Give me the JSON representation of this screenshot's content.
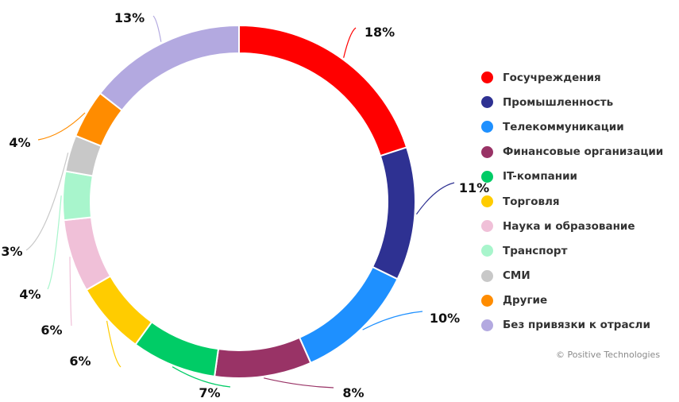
{
  "chart_data": {
    "type": "pie",
    "title": "",
    "categories": [
      "Госучреждения",
      "Промышленность",
      "Телекоммуникации",
      "Финансовые организации",
      "IT-компании",
      "Торговля",
      "Наука и образование",
      "Транспорт",
      "СМИ",
      "Другие",
      "Без привязки к отрасли"
    ],
    "values": [
      18,
      11,
      10,
      8,
      7,
      6,
      6,
      4,
      3,
      4,
      13
    ],
    "labels": [
      "18%",
      "11%",
      "10%",
      "8%",
      "7%",
      "6%",
      "6%",
      "4%",
      "3%",
      "4%",
      "13%"
    ],
    "colors": [
      "#ff0000",
      "#2e3192",
      "#1e90ff",
      "#993366",
      "#00cc66",
      "#ffcc00",
      "#f0c0d8",
      "#a8f5cc",
      "#c8c8c8",
      "#ff8c00",
      "#b3a9e0"
    ],
    "legend_position": "right"
  },
  "copyright": "© Positive Technologies"
}
